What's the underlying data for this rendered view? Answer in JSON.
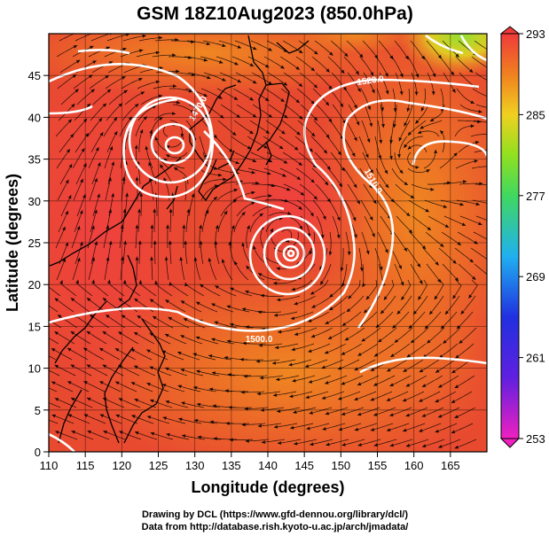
{
  "title": "GSM 18Z10Aug2023 (850.0hPa)",
  "xlabel": "Longitude (degrees)",
  "ylabel": "Latitude  (degrees)",
  "x_ticks": [
    "110",
    "115",
    "120",
    "125",
    "130",
    "135",
    "140",
    "145",
    "150",
    "155",
    "160",
    "165"
  ],
  "y_ticks": [
    "0",
    "5",
    "10",
    "15",
    "20",
    "25",
    "30",
    "35",
    "40",
    "45"
  ],
  "colorbar_ticks": [
    "293",
    "285",
    "277",
    "269",
    "261",
    "253"
  ],
  "contour_labels": [
    "1500.0",
    "1470.0",
    "1520.0",
    "1510.0"
  ],
  "credits": {
    "line1": "Drawing by DCL (https://www.gfd-dennou.org/library/dcl/)",
    "line2": "Data from http://database.rish.kyoto-u.ac.jp/arch/jmadata/"
  },
  "chart_data": {
    "type": "heatmap",
    "variable": "temperature shading with streamlines and geopotential height contours",
    "x_range": [
      110,
      170
    ],
    "y_range": [
      0,
      50
    ],
    "colorbar_range": [
      253,
      293
    ],
    "colors": {
      "warm_max": "#f03a3a",
      "orange": "#f07820",
      "yellow": "#f0d020",
      "green": "#60e020",
      "cyan": "#20b0f0",
      "blue": "#2030e0",
      "magenta": "#f020c0"
    },
    "cyclones": [
      {
        "lon": 142.5,
        "lat": 26.0
      },
      {
        "lon": 126.5,
        "lat": 38.5
      }
    ]
  }
}
